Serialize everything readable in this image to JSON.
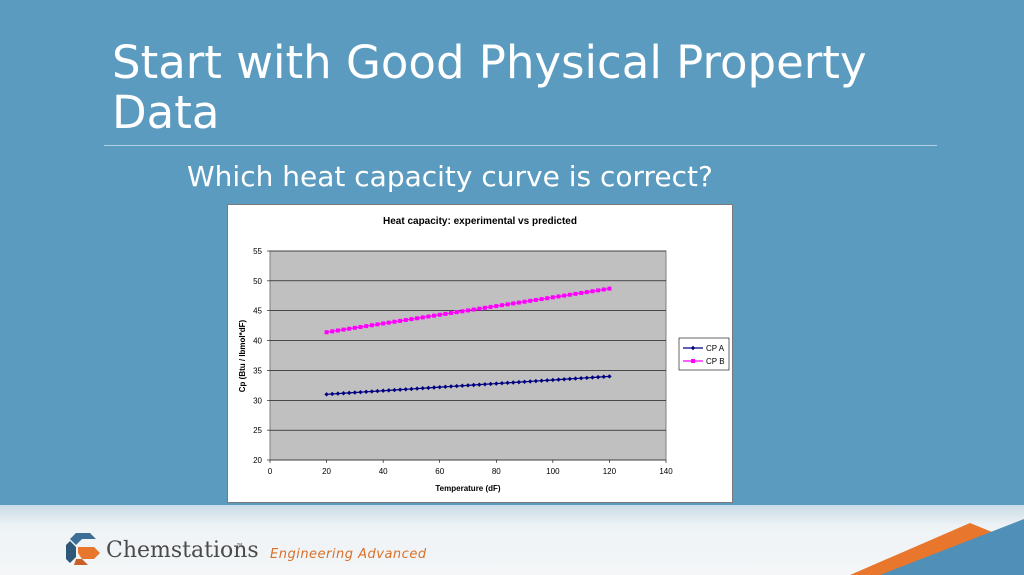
{
  "slide": {
    "title": "Start with Good Physical Property Data",
    "subtitle": "Which heat capacity curve is correct?"
  },
  "footer": {
    "logo_text": "Chemstations",
    "logo_mark": "™",
    "tagline": "Engineering Advanced"
  },
  "colors": {
    "background": "#5b9bc0",
    "plot_area": "#c0c0c0",
    "cp_a": "#000080",
    "cp_b": "#ff00ff",
    "accent": "#e8762c"
  },
  "chart_data": {
    "type": "line",
    "title": "Heat capacity: experimental vs predicted",
    "xlabel": "Temperature (dF)",
    "ylabel": "Cp (Btu / lbmol*dF)",
    "xlim": [
      0,
      140
    ],
    "ylim": [
      20,
      55
    ],
    "xticks": [
      0,
      20,
      40,
      60,
      80,
      100,
      120,
      140
    ],
    "yticks": [
      20,
      25,
      30,
      35,
      40,
      45,
      50,
      55
    ],
    "grid": true,
    "legend": "right",
    "series": [
      {
        "name": "CP A",
        "x_start": 20,
        "x_end": 120,
        "x_step": 2,
        "y_start": 31.0,
        "y_end": 34.0,
        "marker": "diamond",
        "color": "#000080"
      },
      {
        "name": "CP B",
        "x_start": 20,
        "x_end": 120,
        "x_step": 2,
        "y_start": 41.4,
        "y_end": 48.7,
        "marker": "square",
        "color": "#ff00ff"
      }
    ]
  }
}
